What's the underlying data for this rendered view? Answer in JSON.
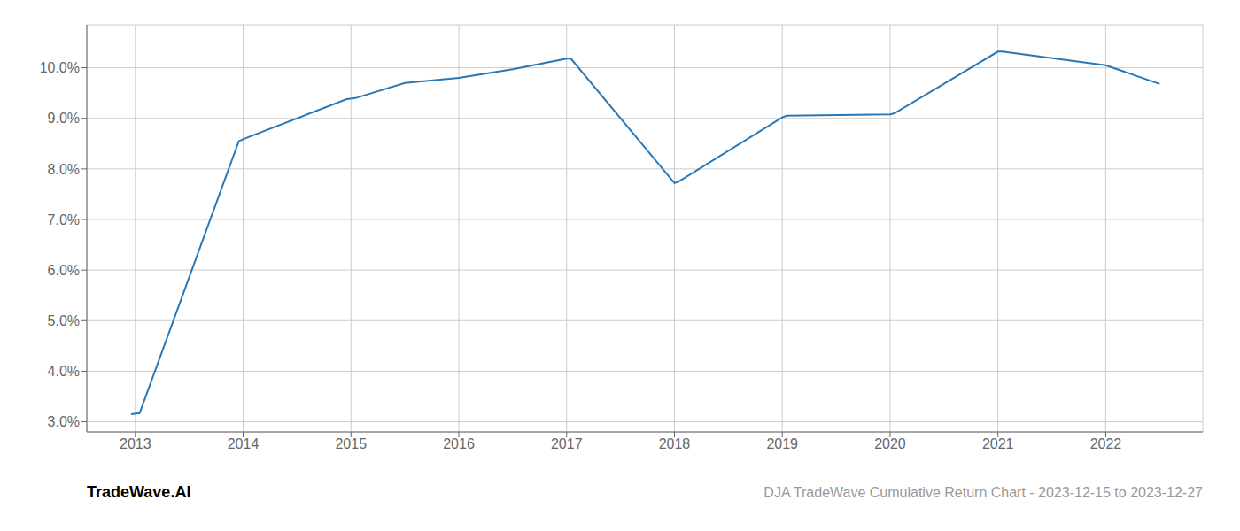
{
  "chart_data": {
    "type": "line",
    "title": "DJA TradeWave Cumulative Return Chart - 2023-12-15 to 2023-12-27",
    "annotations": [
      {
        "text": "TradeWave.AI"
      }
    ],
    "x": [
      2012.96,
      2013.04,
      2013.96,
      2014.04,
      2014.96,
      2015.04,
      2015.5,
      2016.0,
      2016.5,
      2017.0,
      2017.04,
      2018.0,
      2018.04,
      2019.0,
      2019.04,
      2020.0,
      2020.04,
      2021.0,
      2021.04,
      2022.0,
      2022.5
    ],
    "values": [
      3.15,
      3.17,
      8.55,
      8.62,
      9.38,
      9.4,
      9.7,
      9.8,
      9.97,
      10.18,
      10.18,
      7.72,
      7.75,
      9.02,
      9.05,
      9.08,
      9.1,
      10.32,
      10.32,
      10.05,
      9.68
    ],
    "color": "#2878b8",
    "xlim": [
      2012.55,
      2022.9
    ],
    "ylim": [
      2.8,
      10.85
    ],
    "xticks": [
      2013,
      2014,
      2015,
      2016,
      2017,
      2018,
      2019,
      2020,
      2021,
      2022
    ],
    "yticks": [
      {
        "value": 3.0,
        "label": "3.0%"
      },
      {
        "value": 4.0,
        "label": "4.0%"
      },
      {
        "value": 5.0,
        "label": "5.0%"
      },
      {
        "value": 6.0,
        "label": "6.0%"
      },
      {
        "value": 7.0,
        "label": "7.0%"
      },
      {
        "value": 8.0,
        "label": "8.0%"
      },
      {
        "value": 9.0,
        "label": "9.0%"
      },
      {
        "value": 10.0,
        "label": "10.0%"
      }
    ],
    "grid": true
  }
}
